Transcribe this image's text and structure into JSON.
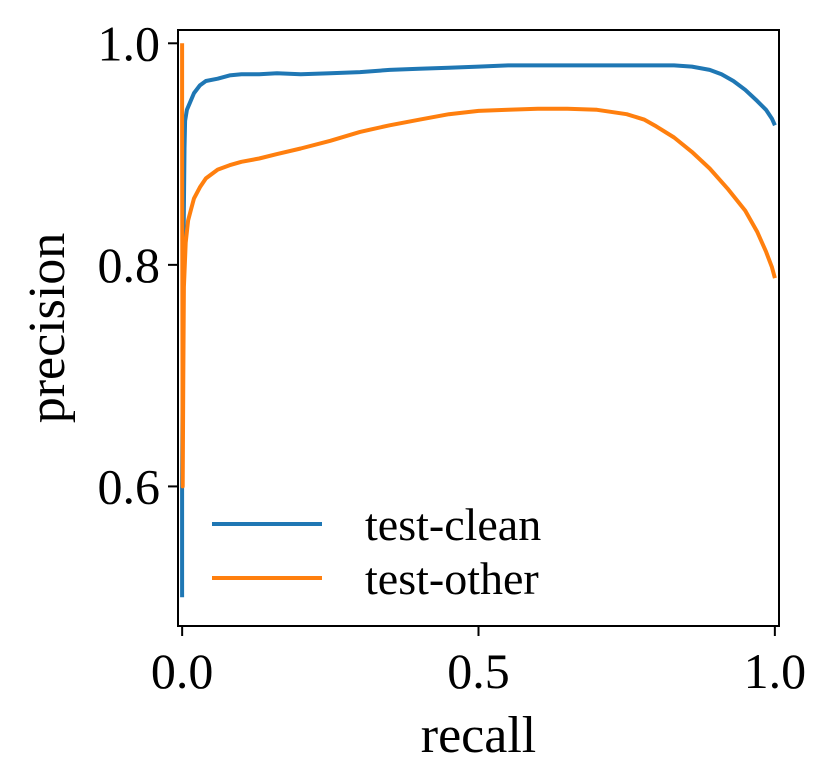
{
  "chart_data": {
    "type": "line",
    "xlabel": "recall",
    "ylabel": "precision",
    "xlim": [
      0.0,
      1.0
    ],
    "ylim": [
      0.5,
      1.0
    ],
    "xticks": [
      0.0,
      0.5,
      1.0
    ],
    "xtick_labels": [
      "0.0",
      "0.5",
      "1.0"
    ],
    "yticks": [
      0.6,
      0.8,
      1.0
    ],
    "ytick_labels": [
      "0.6",
      "0.8",
      "1.0"
    ],
    "grid": false,
    "legend_position": "lower-left",
    "series": [
      {
        "name": "test-clean",
        "color": "#1f77b4",
        "points": [
          [
            0.0,
            0.5
          ],
          [
            0.0,
            0.6
          ],
          [
            0.002,
            0.8
          ],
          [
            0.004,
            0.905
          ],
          [
            0.005,
            0.93
          ],
          [
            0.008,
            0.94
          ],
          [
            0.012,
            0.945
          ],
          [
            0.02,
            0.955
          ],
          [
            0.03,
            0.962
          ],
          [
            0.04,
            0.966
          ],
          [
            0.06,
            0.968
          ],
          [
            0.08,
            0.971
          ],
          [
            0.1,
            0.972
          ],
          [
            0.13,
            0.972
          ],
          [
            0.16,
            0.973
          ],
          [
            0.2,
            0.972
          ],
          [
            0.25,
            0.973
          ],
          [
            0.3,
            0.974
          ],
          [
            0.35,
            0.976
          ],
          [
            0.4,
            0.977
          ],
          [
            0.45,
            0.978
          ],
          [
            0.5,
            0.979
          ],
          [
            0.55,
            0.98
          ],
          [
            0.6,
            0.98
          ],
          [
            0.65,
            0.98
          ],
          [
            0.7,
            0.98
          ],
          [
            0.75,
            0.98
          ],
          [
            0.8,
            0.98
          ],
          [
            0.83,
            0.98
          ],
          [
            0.86,
            0.979
          ],
          [
            0.89,
            0.976
          ],
          [
            0.91,
            0.972
          ],
          [
            0.93,
            0.966
          ],
          [
            0.95,
            0.958
          ],
          [
            0.97,
            0.948
          ],
          [
            0.985,
            0.94
          ],
          [
            0.995,
            0.932
          ],
          [
            1.0,
            0.926
          ]
        ]
      },
      {
        "name": "test-other",
        "color": "#ff7f0e",
        "points": [
          [
            0.0,
            1.0
          ],
          [
            0.0,
            0.92
          ],
          [
            0.001,
            0.6
          ],
          [
            0.002,
            0.7
          ],
          [
            0.003,
            0.78
          ],
          [
            0.006,
            0.82
          ],
          [
            0.01,
            0.84
          ],
          [
            0.015,
            0.85
          ],
          [
            0.02,
            0.86
          ],
          [
            0.03,
            0.87
          ],
          [
            0.04,
            0.878
          ],
          [
            0.05,
            0.882
          ],
          [
            0.06,
            0.886
          ],
          [
            0.08,
            0.89
          ],
          [
            0.1,
            0.893
          ],
          [
            0.13,
            0.896
          ],
          [
            0.16,
            0.9
          ],
          [
            0.2,
            0.905
          ],
          [
            0.25,
            0.912
          ],
          [
            0.3,
            0.92
          ],
          [
            0.35,
            0.926
          ],
          [
            0.4,
            0.931
          ],
          [
            0.45,
            0.936
          ],
          [
            0.5,
            0.939
          ],
          [
            0.55,
            0.94
          ],
          [
            0.6,
            0.941
          ],
          [
            0.65,
            0.941
          ],
          [
            0.7,
            0.94
          ],
          [
            0.75,
            0.936
          ],
          [
            0.78,
            0.931
          ],
          [
            0.8,
            0.925
          ],
          [
            0.83,
            0.915
          ],
          [
            0.86,
            0.902
          ],
          [
            0.89,
            0.887
          ],
          [
            0.92,
            0.869
          ],
          [
            0.95,
            0.849
          ],
          [
            0.97,
            0.83
          ],
          [
            0.985,
            0.812
          ],
          [
            0.995,
            0.798
          ],
          [
            1.0,
            0.788
          ]
        ]
      }
    ]
  }
}
